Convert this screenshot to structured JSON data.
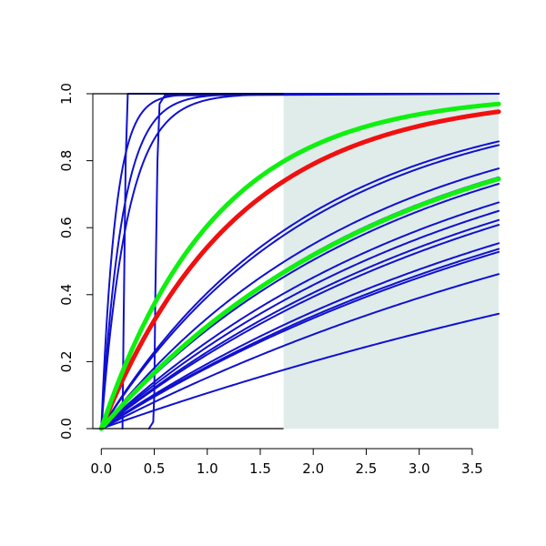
{
  "chart_data": {
    "type": "line",
    "title": "",
    "xlabel": "",
    "ylabel": "",
    "xlim": [
      -0.08,
      3.75
    ],
    "ylim": [
      0,
      1
    ],
    "x_ticks": [
      "0.0",
      "0.5",
      "1.0",
      "1.5",
      "2.0",
      "2.5",
      "3.0",
      "3.5"
    ],
    "y_ticks": [
      "0.0",
      "0.2",
      "0.4",
      "0.6",
      "0.8",
      "1.0"
    ],
    "grid": false,
    "shaded_region": {
      "x_from": 1.72,
      "x_to": 3.75,
      "color": "#e0ecea"
    },
    "colors": {
      "blue": "#1010d0",
      "red": "#f01010",
      "green": "#10f010",
      "axis": "#000000"
    },
    "series": [
      {
        "kind": "exp",
        "x0": 0,
        "x_end": 3.75,
        "k": 0.78,
        "color": "#f01010",
        "width": 5
      },
      {
        "kind": "exp",
        "x0": 0,
        "x_end": 3.75,
        "k": 0.93,
        "color": "#10f010",
        "width": 5
      },
      {
        "kind": "exp",
        "x0": 0,
        "x_end": 3.75,
        "k": 0.365,
        "color": "#10f010",
        "width": 5
      },
      {
        "kind": "exp",
        "x0": 0,
        "x_end": 3.75,
        "k": 0.52,
        "color": "#1010d0",
        "width": 2
      },
      {
        "kind": "exp",
        "x0": 0,
        "x_end": 3.75,
        "k": 0.5,
        "color": "#1010d0",
        "width": 2
      },
      {
        "kind": "exp",
        "x0": 0,
        "x_end": 3.75,
        "k": 0.4,
        "color": "#1010d0",
        "width": 2
      },
      {
        "kind": "exp",
        "x0": 0,
        "x_end": 3.75,
        "k": 0.37,
        "color": "#1010d0",
        "width": 2
      },
      {
        "kind": "exp",
        "x0": 0,
        "x_end": 3.75,
        "k": 0.35,
        "color": "#1010d0",
        "width": 2
      },
      {
        "kind": "exp",
        "x0": 0,
        "x_end": 3.75,
        "k": 0.3,
        "color": "#1010d0",
        "width": 2
      },
      {
        "kind": "exp",
        "x0": 0,
        "x_end": 3.75,
        "k": 0.28,
        "color": "#1010d0",
        "width": 2
      },
      {
        "kind": "exp",
        "x0": 0,
        "x_end": 3.75,
        "k": 0.26,
        "color": "#1010d0",
        "width": 2
      },
      {
        "kind": "exp",
        "x0": 0,
        "x_end": 3.75,
        "k": 0.25,
        "color": "#1010d0",
        "width": 2
      },
      {
        "kind": "exp",
        "x0": 0,
        "x_end": 3.75,
        "k": 0.215,
        "color": "#1010d0",
        "width": 2
      },
      {
        "kind": "exp",
        "x0": 0,
        "x_end": 3.75,
        "k": 0.205,
        "color": "#1010d0",
        "width": 2
      },
      {
        "kind": "exp",
        "x0": 0,
        "x_end": 3.75,
        "k": 0.2,
        "color": "#1010d0",
        "width": 2
      },
      {
        "kind": "exp",
        "x0": 0,
        "x_end": 3.75,
        "k": 0.165,
        "color": "#1010d0",
        "width": 2
      },
      {
        "kind": "exp",
        "x0": 0,
        "x_end": 3.75,
        "k": 0.112,
        "color": "#1010d0",
        "width": 2
      },
      {
        "kind": "exp",
        "x0": 0,
        "x_end": 3.75,
        "k": 7.5,
        "color": "#1010d0",
        "width": 2
      },
      {
        "kind": "exp",
        "x0": 0,
        "x_end": 3.75,
        "k": 5.0,
        "color": "#1010d0",
        "width": 2
      },
      {
        "kind": "exp",
        "x0": 0,
        "x_end": 3.75,
        "k": 4.0,
        "color": "#1010d0",
        "width": 2
      },
      {
        "kind": "points",
        "x": [
          0.2,
          0.21,
          0.23,
          0.25,
          3.75
        ],
        "y": [
          0,
          0.3,
          0.8,
          1,
          1
        ],
        "color": "#1010d0",
        "width": 2
      },
      {
        "kind": "points",
        "x": [
          0.45,
          0.49,
          0.5,
          0.51,
          0.53,
          0.55,
          0.6,
          3.75
        ],
        "y": [
          0,
          0.02,
          0.1,
          0.4,
          0.8,
          0.97,
          0.995,
          1
        ],
        "color": "#1010d0",
        "width": 2
      }
    ]
  }
}
